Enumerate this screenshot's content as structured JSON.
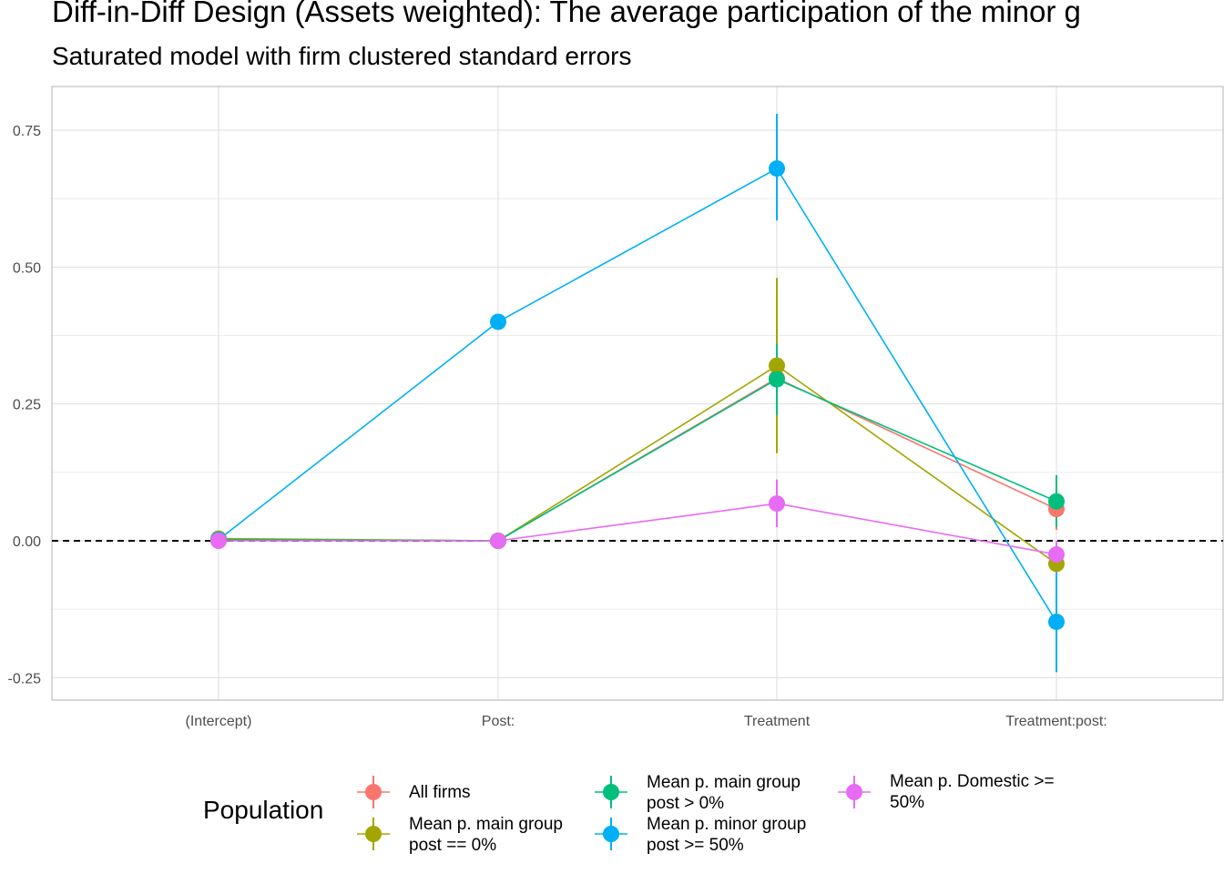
{
  "chart_data": {
    "type": "line",
    "title": "Diff-in-Diff Design (Assets weighted): The average participation of the minor g",
    "subtitle": "Saturated model with firm clustered standard errors",
    "categories": [
      "(Intercept)",
      "Post:",
      "Treatment",
      "Treatment:post:"
    ],
    "ylim": [
      -0.29,
      0.83
    ],
    "yticks": [
      0.75,
      0.5,
      0.25,
      0.0,
      -0.25
    ],
    "ytick_labels": [
      "0.75",
      "0.50",
      "0.25",
      "0.00",
      "-0.25"
    ],
    "reference_line": 0.0,
    "grid": true,
    "legend_title": "Population",
    "legend_position": "bottom",
    "series": [
      {
        "name": "All firms",
        "color": "#F8766D",
        "values": [
          0.002,
          0.0,
          0.297,
          0.058
        ],
        "lower": [
          null,
          null,
          0.26,
          0.02
        ],
        "upper": [
          null,
          null,
          0.335,
          0.095
        ]
      },
      {
        "name": "Mean p. main group\npost == 0%",
        "color": "#A3A500",
        "values": [
          0.004,
          0.0,
          0.32,
          -0.042
        ],
        "lower": [
          null,
          null,
          0.16,
          -0.07
        ],
        "upper": [
          null,
          null,
          0.48,
          -0.015
        ]
      },
      {
        "name": "Mean p. main group\npost > 0%",
        "color": "#00BF7D",
        "values": [
          0.002,
          0.0,
          0.295,
          0.072
        ],
        "lower": [
          null,
          null,
          0.23,
          0.025
        ],
        "upper": [
          null,
          null,
          0.36,
          0.12
        ]
      },
      {
        "name": "Mean p. minor group\npost >= 50%",
        "color": "#00B0F6",
        "values": [
          0.002,
          0.4,
          0.68,
          -0.148
        ],
        "lower": [
          null,
          null,
          0.585,
          -0.24
        ],
        "upper": [
          null,
          null,
          0.78,
          -0.055
        ]
      },
      {
        "name": "Mean p. Domestic >=\n50%",
        "color": "#E76BF3",
        "values": [
          0.0,
          0.0,
          0.068,
          -0.025
        ],
        "lower": [
          null,
          null,
          0.025,
          -0.05
        ],
        "upper": [
          null,
          null,
          0.112,
          0.0
        ]
      }
    ]
  }
}
